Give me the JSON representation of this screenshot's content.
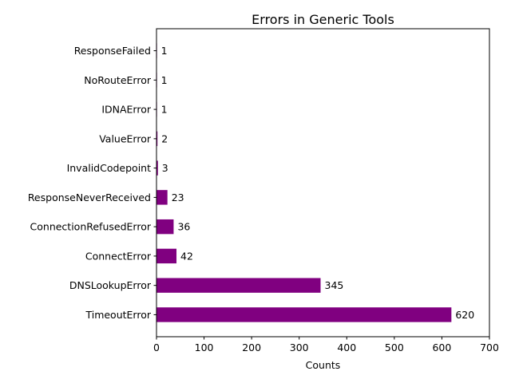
{
  "chart_data": {
    "type": "bar",
    "orientation": "horizontal",
    "title": "Errors in Generic Tools",
    "xlabel": "Counts",
    "ylabel": "",
    "categories": [
      "TimeoutError",
      "DNSLookupError",
      "ConnectError",
      "ConnectionRefusedError",
      "ResponseNeverReceived",
      "InvalidCodepoint",
      "ValueError",
      "IDNAError",
      "NoRouteError",
      "ResponseFailed"
    ],
    "values": [
      620,
      345,
      42,
      36,
      23,
      3,
      2,
      1,
      1,
      1
    ],
    "xlim": [
      0,
      700
    ],
    "xticks": [
      0,
      100,
      200,
      300,
      400,
      500,
      600,
      700
    ],
    "bar_color": "#800080",
    "grid": false,
    "data_labels": true
  }
}
